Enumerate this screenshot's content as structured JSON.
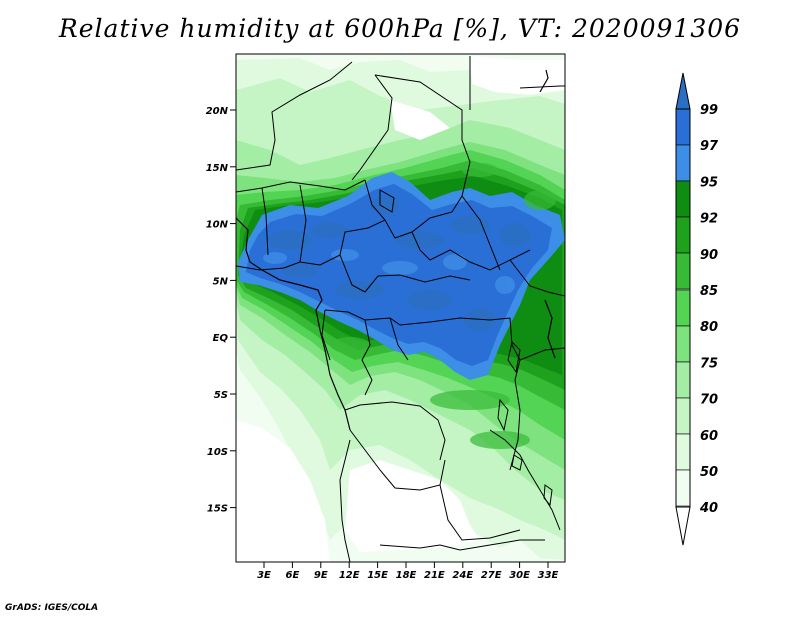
{
  "title": "Relative humidity at 600hPa [%], VT: 2020091306",
  "credit": "GrADS: IGES/COLA",
  "map": {
    "lat_labels": [
      "20N",
      "15N",
      "10N",
      "5N",
      "EQ",
      "5S",
      "10S",
      "15S"
    ],
    "lon_labels": [
      "3E",
      "6E",
      "9E",
      "12E",
      "15E",
      "18E",
      "21E",
      "24E",
      "27E",
      "30E",
      "33E"
    ]
  },
  "colorbar": {
    "labels": [
      "99",
      "97",
      "95",
      "92",
      "90",
      "85",
      "80",
      "75",
      "70",
      "60",
      "50",
      "40"
    ],
    "colors": {
      "gt99": "#2a6fc4",
      "97_99": "#2a6fd6",
      "95_97": "#3d8ee6",
      "92_95": "#0f8c12",
      "90_92": "#1ea21e",
      "85_90": "#37bb37",
      "80_85": "#54d454",
      "75_80": "#7ee27e",
      "70_75": "#a4eda4",
      "60_70": "#c5f4c5",
      "50_60": "#e0fae0",
      "40_50": "#f1fdf1",
      "lt40": "#ffffff"
    }
  }
}
